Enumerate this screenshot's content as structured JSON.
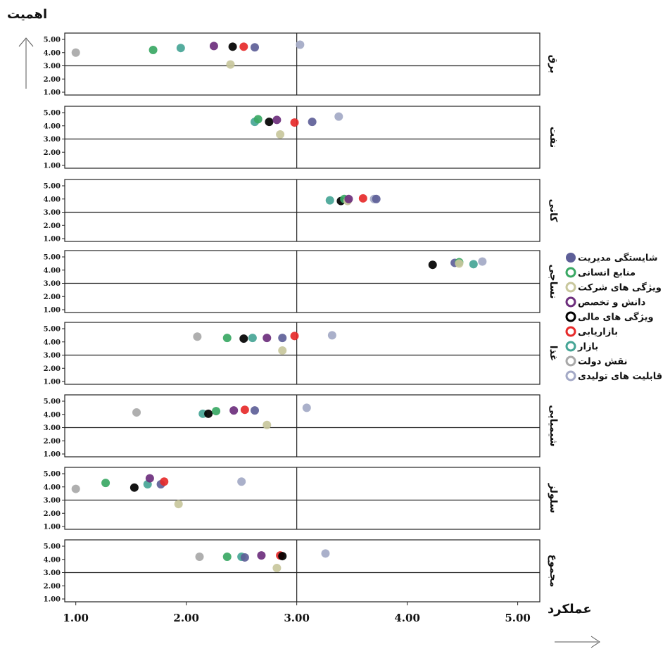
{
  "chart_data": {
    "type": "scatter",
    "title": "",
    "xlabel": "عملکرد",
    "ylabel": "اهمیت",
    "xlim": [
      0.9,
      5.2
    ],
    "ylim": [
      1.0,
      5.0
    ],
    "x_ticks": [
      "1.00",
      "2.00",
      "3.00",
      "4.00",
      "5.00"
    ],
    "y_ticks": [
      "1.00",
      "2.00",
      "3.00",
      "4.00",
      "5.00"
    ],
    "x_reference": 3.0,
    "y_reference": 3.0,
    "legend_position": "right",
    "series": [
      {
        "name": "شایستگی مدیریت",
        "color": "#5e5f98"
      },
      {
        "name": "منابع انسانی",
        "color": "#3aa864"
      },
      {
        "name": "ویژگی های شرکت",
        "color": "#c8c79c"
      },
      {
        "name": "دانش و تخصص",
        "color": "#6d2f7d"
      },
      {
        "name": "ویژگی های مالی",
        "color": "#000000"
      },
      {
        "name": "بازاریابی",
        "color": "#e62a2a"
      },
      {
        "name": "بازار",
        "color": "#46a596"
      },
      {
        "name": "نقش دولت",
        "color": "#a8a8a8"
      },
      {
        "name": "قابلیت های تولیدی",
        "color": "#a3a9c6"
      }
    ],
    "panels": [
      {
        "label": "برق",
        "points": [
          {
            "s": 7,
            "x": 1.0,
            "y": 4.0
          },
          {
            "s": 1,
            "x": 1.7,
            "y": 4.2
          },
          {
            "s": 6,
            "x": 1.95,
            "y": 4.35
          },
          {
            "s": 3,
            "x": 2.25,
            "y": 4.5
          },
          {
            "s": 2,
            "x": 2.4,
            "y": 3.1
          },
          {
            "s": 4,
            "x": 2.42,
            "y": 4.45
          },
          {
            "s": 5,
            "x": 2.52,
            "y": 4.45
          },
          {
            "s": 0,
            "x": 2.62,
            "y": 4.4
          },
          {
            "s": 8,
            "x": 3.03,
            "y": 4.6
          }
        ]
      },
      {
        "label": "نفت",
        "points": [
          {
            "s": 6,
            "x": 2.62,
            "y": 4.3
          },
          {
            "s": 1,
            "x": 2.65,
            "y": 4.5
          },
          {
            "s": 4,
            "x": 2.75,
            "y": 4.3
          },
          {
            "s": 3,
            "x": 2.82,
            "y": 4.45
          },
          {
            "s": 2,
            "x": 2.85,
            "y": 3.35
          },
          {
            "s": 5,
            "x": 2.98,
            "y": 4.25
          },
          {
            "s": 0,
            "x": 3.14,
            "y": 4.3
          },
          {
            "s": 8,
            "x": 3.38,
            "y": 4.7
          }
        ]
      },
      {
        "label": "کانی",
        "points": [
          {
            "s": 6,
            "x": 3.3,
            "y": 3.9
          },
          {
            "s": 4,
            "x": 3.4,
            "y": 3.85
          },
          {
            "s": 1,
            "x": 3.43,
            "y": 4.0
          },
          {
            "s": 2,
            "x": 3.46,
            "y": 3.85
          },
          {
            "s": 3,
            "x": 3.47,
            "y": 4.0
          },
          {
            "s": 5,
            "x": 3.6,
            "y": 4.05
          },
          {
            "s": 8,
            "x": 3.7,
            "y": 4.0
          },
          {
            "s": 0,
            "x": 3.72,
            "y": 4.0
          }
        ]
      },
      {
        "label": "نساجی",
        "points": [
          {
            "s": 4,
            "x": 4.23,
            "y": 4.4
          },
          {
            "s": 0,
            "x": 4.43,
            "y": 4.55
          },
          {
            "s": 1,
            "x": 4.47,
            "y": 4.6
          },
          {
            "s": 2,
            "x": 4.47,
            "y": 4.5
          },
          {
            "s": 6,
            "x": 4.6,
            "y": 4.45
          },
          {
            "s": 8,
            "x": 4.68,
            "y": 4.65
          }
        ]
      },
      {
        "label": "غذا",
        "points": [
          {
            "s": 7,
            "x": 2.1,
            "y": 4.4
          },
          {
            "s": 1,
            "x": 2.37,
            "y": 4.3
          },
          {
            "s": 4,
            "x": 2.52,
            "y": 4.25
          },
          {
            "s": 6,
            "x": 2.6,
            "y": 4.3
          },
          {
            "s": 3,
            "x": 2.73,
            "y": 4.3
          },
          {
            "s": 0,
            "x": 2.87,
            "y": 4.3
          },
          {
            "s": 2,
            "x": 2.87,
            "y": 3.35
          },
          {
            "s": 5,
            "x": 2.98,
            "y": 4.45
          },
          {
            "s": 8,
            "x": 3.32,
            "y": 4.5
          }
        ]
      },
      {
        "label": "شیمیایی",
        "points": [
          {
            "s": 7,
            "x": 1.55,
            "y": 4.15
          },
          {
            "s": 6,
            "x": 2.15,
            "y": 4.05
          },
          {
            "s": 4,
            "x": 2.2,
            "y": 4.05
          },
          {
            "s": 1,
            "x": 2.27,
            "y": 4.25
          },
          {
            "s": 3,
            "x": 2.43,
            "y": 4.3
          },
          {
            "s": 5,
            "x": 2.53,
            "y": 4.35
          },
          {
            "s": 0,
            "x": 2.62,
            "y": 4.3
          },
          {
            "s": 2,
            "x": 2.73,
            "y": 3.2
          },
          {
            "s": 8,
            "x": 3.09,
            "y": 4.5
          }
        ]
      },
      {
        "label": "سلولز",
        "points": [
          {
            "s": 7,
            "x": 1.0,
            "y": 3.85
          },
          {
            "s": 1,
            "x": 1.27,
            "y": 4.3
          },
          {
            "s": 4,
            "x": 1.53,
            "y": 3.95
          },
          {
            "s": 6,
            "x": 1.65,
            "y": 4.2
          },
          {
            "s": 3,
            "x": 1.67,
            "y": 4.65
          },
          {
            "s": 0,
            "x": 1.77,
            "y": 4.2
          },
          {
            "s": 5,
            "x": 1.8,
            "y": 4.4
          },
          {
            "s": 2,
            "x": 1.93,
            "y": 2.7
          },
          {
            "s": 8,
            "x": 2.5,
            "y": 4.4
          }
        ]
      },
      {
        "label": "مجموع",
        "points": [
          {
            "s": 7,
            "x": 2.12,
            "y": 4.2
          },
          {
            "s": 1,
            "x": 2.37,
            "y": 4.2
          },
          {
            "s": 6,
            "x": 2.5,
            "y": 4.2
          },
          {
            "s": 0,
            "x": 2.53,
            "y": 4.15
          },
          {
            "s": 3,
            "x": 2.68,
            "y": 4.3
          },
          {
            "s": 2,
            "x": 2.82,
            "y": 3.35
          },
          {
            "s": 5,
            "x": 2.85,
            "y": 4.3
          },
          {
            "s": 4,
            "x": 2.87,
            "y": 4.25
          },
          {
            "s": 8,
            "x": 3.26,
            "y": 4.45
          }
        ]
      }
    ]
  }
}
